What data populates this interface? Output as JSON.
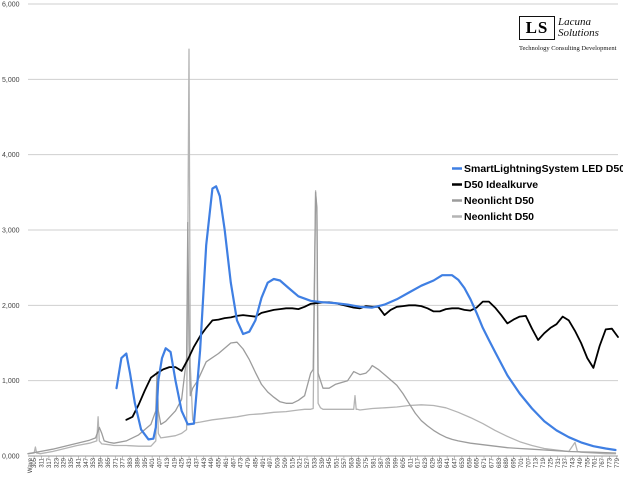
{
  "logo": {
    "monogram": "LS",
    "name_line1": "Lacuna",
    "name_line2": "Solutions",
    "tagline": "Technology Consulting Development"
  },
  "chart_data": {
    "type": "line",
    "title": "",
    "xlabel": "",
    "ylabel": "",
    "x_first_label": "Wave",
    "xlim": [
      300,
      780
    ],
    "ylim": [
      0,
      6000
    ],
    "yticks": [
      {
        "value": 0,
        "label": "0,000"
      },
      {
        "value": 1000,
        "label": "1,000"
      },
      {
        "value": 2000,
        "label": "2,000"
      },
      {
        "value": 3000,
        "label": "3,000"
      },
      {
        "value": 4000,
        "label": "4,000"
      },
      {
        "value": 5000,
        "label": "5,000"
      },
      {
        "value": 6000,
        "label": "6,000"
      }
    ],
    "xticks": [
      305,
      311,
      317,
      323,
      329,
      335,
      341,
      347,
      353,
      359,
      365,
      371,
      377,
      383,
      389,
      395,
      401,
      407,
      413,
      419,
      425,
      431,
      437,
      443,
      449,
      455,
      461,
      467,
      473,
      479,
      485,
      491,
      497,
      503,
      509,
      515,
      521,
      527,
      533,
      539,
      545,
      551,
      557,
      563,
      569,
      575,
      581,
      587,
      593,
      599,
      605,
      611,
      617,
      623,
      629,
      635,
      641,
      647,
      653,
      659,
      665,
      671,
      677,
      683,
      689,
      695,
      701,
      707,
      713,
      719,
      725,
      731,
      737,
      743,
      749,
      755,
      761,
      767,
      773,
      779
    ],
    "grid": true,
    "legend_position": "right",
    "series": [
      {
        "name": "SmartLightningSystem  LED D50",
        "color": "#3f7fe3",
        "width": 2.2,
        "x": [
          372,
          376,
          380,
          383,
          387,
          392,
          398,
          402,
          404,
          406,
          409,
          412,
          416,
          420,
          425,
          430,
          435,
          440,
          445,
          450,
          453,
          456,
          460,
          465,
          470,
          475,
          480,
          485,
          490,
          495,
          500,
          505,
          512,
          520,
          530,
          540,
          550,
          560,
          570,
          580,
          590,
          600,
          610,
          620,
          630,
          637,
          645,
          650,
          655,
          660,
          665,
          670,
          675,
          680,
          690,
          700,
          710,
          720,
          730,
          740,
          750,
          760,
          770,
          778
        ],
        "y": [
          900,
          1300,
          1360,
          1100,
          700,
          350,
          220,
          230,
          380,
          1000,
          1300,
          1430,
          1380,
          1000,
          600,
          420,
          430,
          1400,
          2800,
          3550,
          3580,
          3450,
          3000,
          2300,
          1800,
          1620,
          1650,
          1800,
          2100,
          2300,
          2350,
          2330,
          2230,
          2120,
          2060,
          2040,
          2030,
          2010,
          1980,
          1970,
          2010,
          2080,
          2170,
          2260,
          2330,
          2400,
          2400,
          2340,
          2230,
          2080,
          1900,
          1700,
          1540,
          1380,
          1070,
          830,
          630,
          460,
          340,
          250,
          180,
          130,
          100,
          80
        ]
      },
      {
        "name": "D50 Idealkurve",
        "color": "#000000",
        "width": 1.8,
        "x": [
          380,
          385,
          390,
          395,
          400,
          405,
          410,
          415,
          420,
          425,
          430,
          435,
          440,
          445,
          450,
          455,
          460,
          465,
          470,
          475,
          480,
          485,
          490,
          495,
          500,
          505,
          510,
          515,
          520,
          525,
          530,
          535,
          540,
          545,
          550,
          555,
          560,
          565,
          570,
          575,
          580,
          585,
          590,
          595,
          600,
          605,
          610,
          615,
          620,
          625,
          630,
          635,
          640,
          645,
          650,
          655,
          660,
          665,
          670,
          675,
          680,
          685,
          690,
          695,
          700,
          705,
          710,
          715,
          720,
          725,
          730,
          735,
          740,
          745,
          750,
          755,
          760,
          765,
          770,
          775,
          780
        ],
        "y": [
          480,
          520,
          680,
          870,
          1040,
          1100,
          1150,
          1180,
          1180,
          1130,
          1280,
          1450,
          1590,
          1700,
          1800,
          1810,
          1830,
          1840,
          1860,
          1870,
          1860,
          1850,
          1900,
          1920,
          1940,
          1950,
          1960,
          1960,
          1950,
          1980,
          2020,
          2030,
          2040,
          2040,
          2030,
          2010,
          1990,
          1970,
          1960,
          1990,
          1980,
          1980,
          1870,
          1940,
          1980,
          1990,
          2000,
          2000,
          1990,
          1960,
          1920,
          1920,
          1950,
          1960,
          1960,
          1940,
          1930,
          1970,
          2050,
          2050,
          1970,
          1870,
          1760,
          1810,
          1850,
          1860,
          1690,
          1540,
          1630,
          1700,
          1750,
          1850,
          1800,
          1660,
          1500,
          1300,
          1170,
          1460,
          1680,
          1690,
          1580
        ]
      },
      {
        "name": "Neonlicht D50",
        "color": "#9c9c9c",
        "width": 1.3,
        "x": [
          300,
          310,
          320,
          330,
          340,
          350,
          355,
          358,
          360,
          362,
          366,
          370,
          380,
          390,
          400,
          404,
          405,
          406,
          408,
          412,
          420,
          425,
          429,
          430,
          431,
          432,
          434,
          438,
          445,
          455,
          465,
          470,
          475,
          480,
          485,
          490,
          495,
          500,
          505,
          510,
          515,
          520,
          525,
          530,
          532,
          534,
          535,
          536,
          538,
          540,
          545,
          550,
          560,
          565,
          570,
          575,
          578,
          580,
          582,
          585,
          590,
          600,
          605,
          610,
          615,
          620,
          625,
          630,
          635,
          640,
          645,
          650,
          660,
          670,
          680,
          690,
          700,
          710,
          720,
          730,
          740,
          750,
          760,
          770,
          778
        ],
        "y": [
          30,
          60,
          90,
          130,
          170,
          210,
          240,
          380,
          300,
          200,
          180,
          170,
          200,
          280,
          420,
          600,
          1120,
          600,
          420,
          460,
          600,
          750,
          1300,
          3100,
          1500,
          800,
          900,
          1000,
          1250,
          1360,
          1500,
          1510,
          1420,
          1280,
          1110,
          950,
          850,
          780,
          720,
          700,
          700,
          740,
          800,
          1100,
          1150,
          3500,
          3300,
          1100,
          1000,
          900,
          900,
          950,
          1000,
          1120,
          1080,
          1100,
          1150,
          1200,
          1180,
          1150,
          1080,
          940,
          830,
          700,
          570,
          470,
          400,
          340,
          290,
          250,
          220,
          200,
          170,
          150,
          130,
          110,
          100,
          90,
          80,
          70,
          60,
          55,
          50,
          45,
          40
        ]
      },
      {
        "name": "Neonlicht D50",
        "color": "#b4b4b4",
        "width": 1.3,
        "x": [
          300,
          305,
          306,
          307,
          310,
          320,
          330,
          340,
          350,
          356,
          357,
          358,
          360,
          366,
          370,
          380,
          390,
          400,
          404,
          405,
          406,
          408,
          412,
          420,
          425,
          429,
          430,
          431,
          432,
          434,
          436,
          440,
          450,
          460,
          470,
          480,
          490,
          500,
          510,
          520,
          525,
          530,
          532,
          534,
          535,
          536,
          538,
          540,
          550,
          560,
          565,
          566,
          567,
          568,
          570,
          580,
          590,
          600,
          610,
          620,
          630,
          640,
          650,
          660,
          670,
          680,
          690,
          700,
          710,
          720,
          730,
          740,
          745,
          747,
          750,
          760,
          770,
          778
        ],
        "y": [
          30,
          40,
          120,
          40,
          30,
          60,
          100,
          140,
          170,
          200,
          520,
          200,
          160,
          150,
          140,
          140,
          130,
          130,
          200,
          1000,
          300,
          240,
          250,
          270,
          300,
          350,
          2800,
          5400,
          1200,
          480,
          440,
          450,
          480,
          500,
          520,
          550,
          560,
          580,
          590,
          610,
          620,
          620,
          630,
          3520,
          3200,
          700,
          640,
          620,
          620,
          620,
          620,
          800,
          620,
          620,
          610,
          630,
          640,
          650,
          670,
          680,
          670,
          640,
          580,
          510,
          430,
          340,
          260,
          190,
          140,
          100,
          80,
          60,
          180,
          60,
          50,
          40,
          30,
          30
        ]
      }
    ]
  }
}
